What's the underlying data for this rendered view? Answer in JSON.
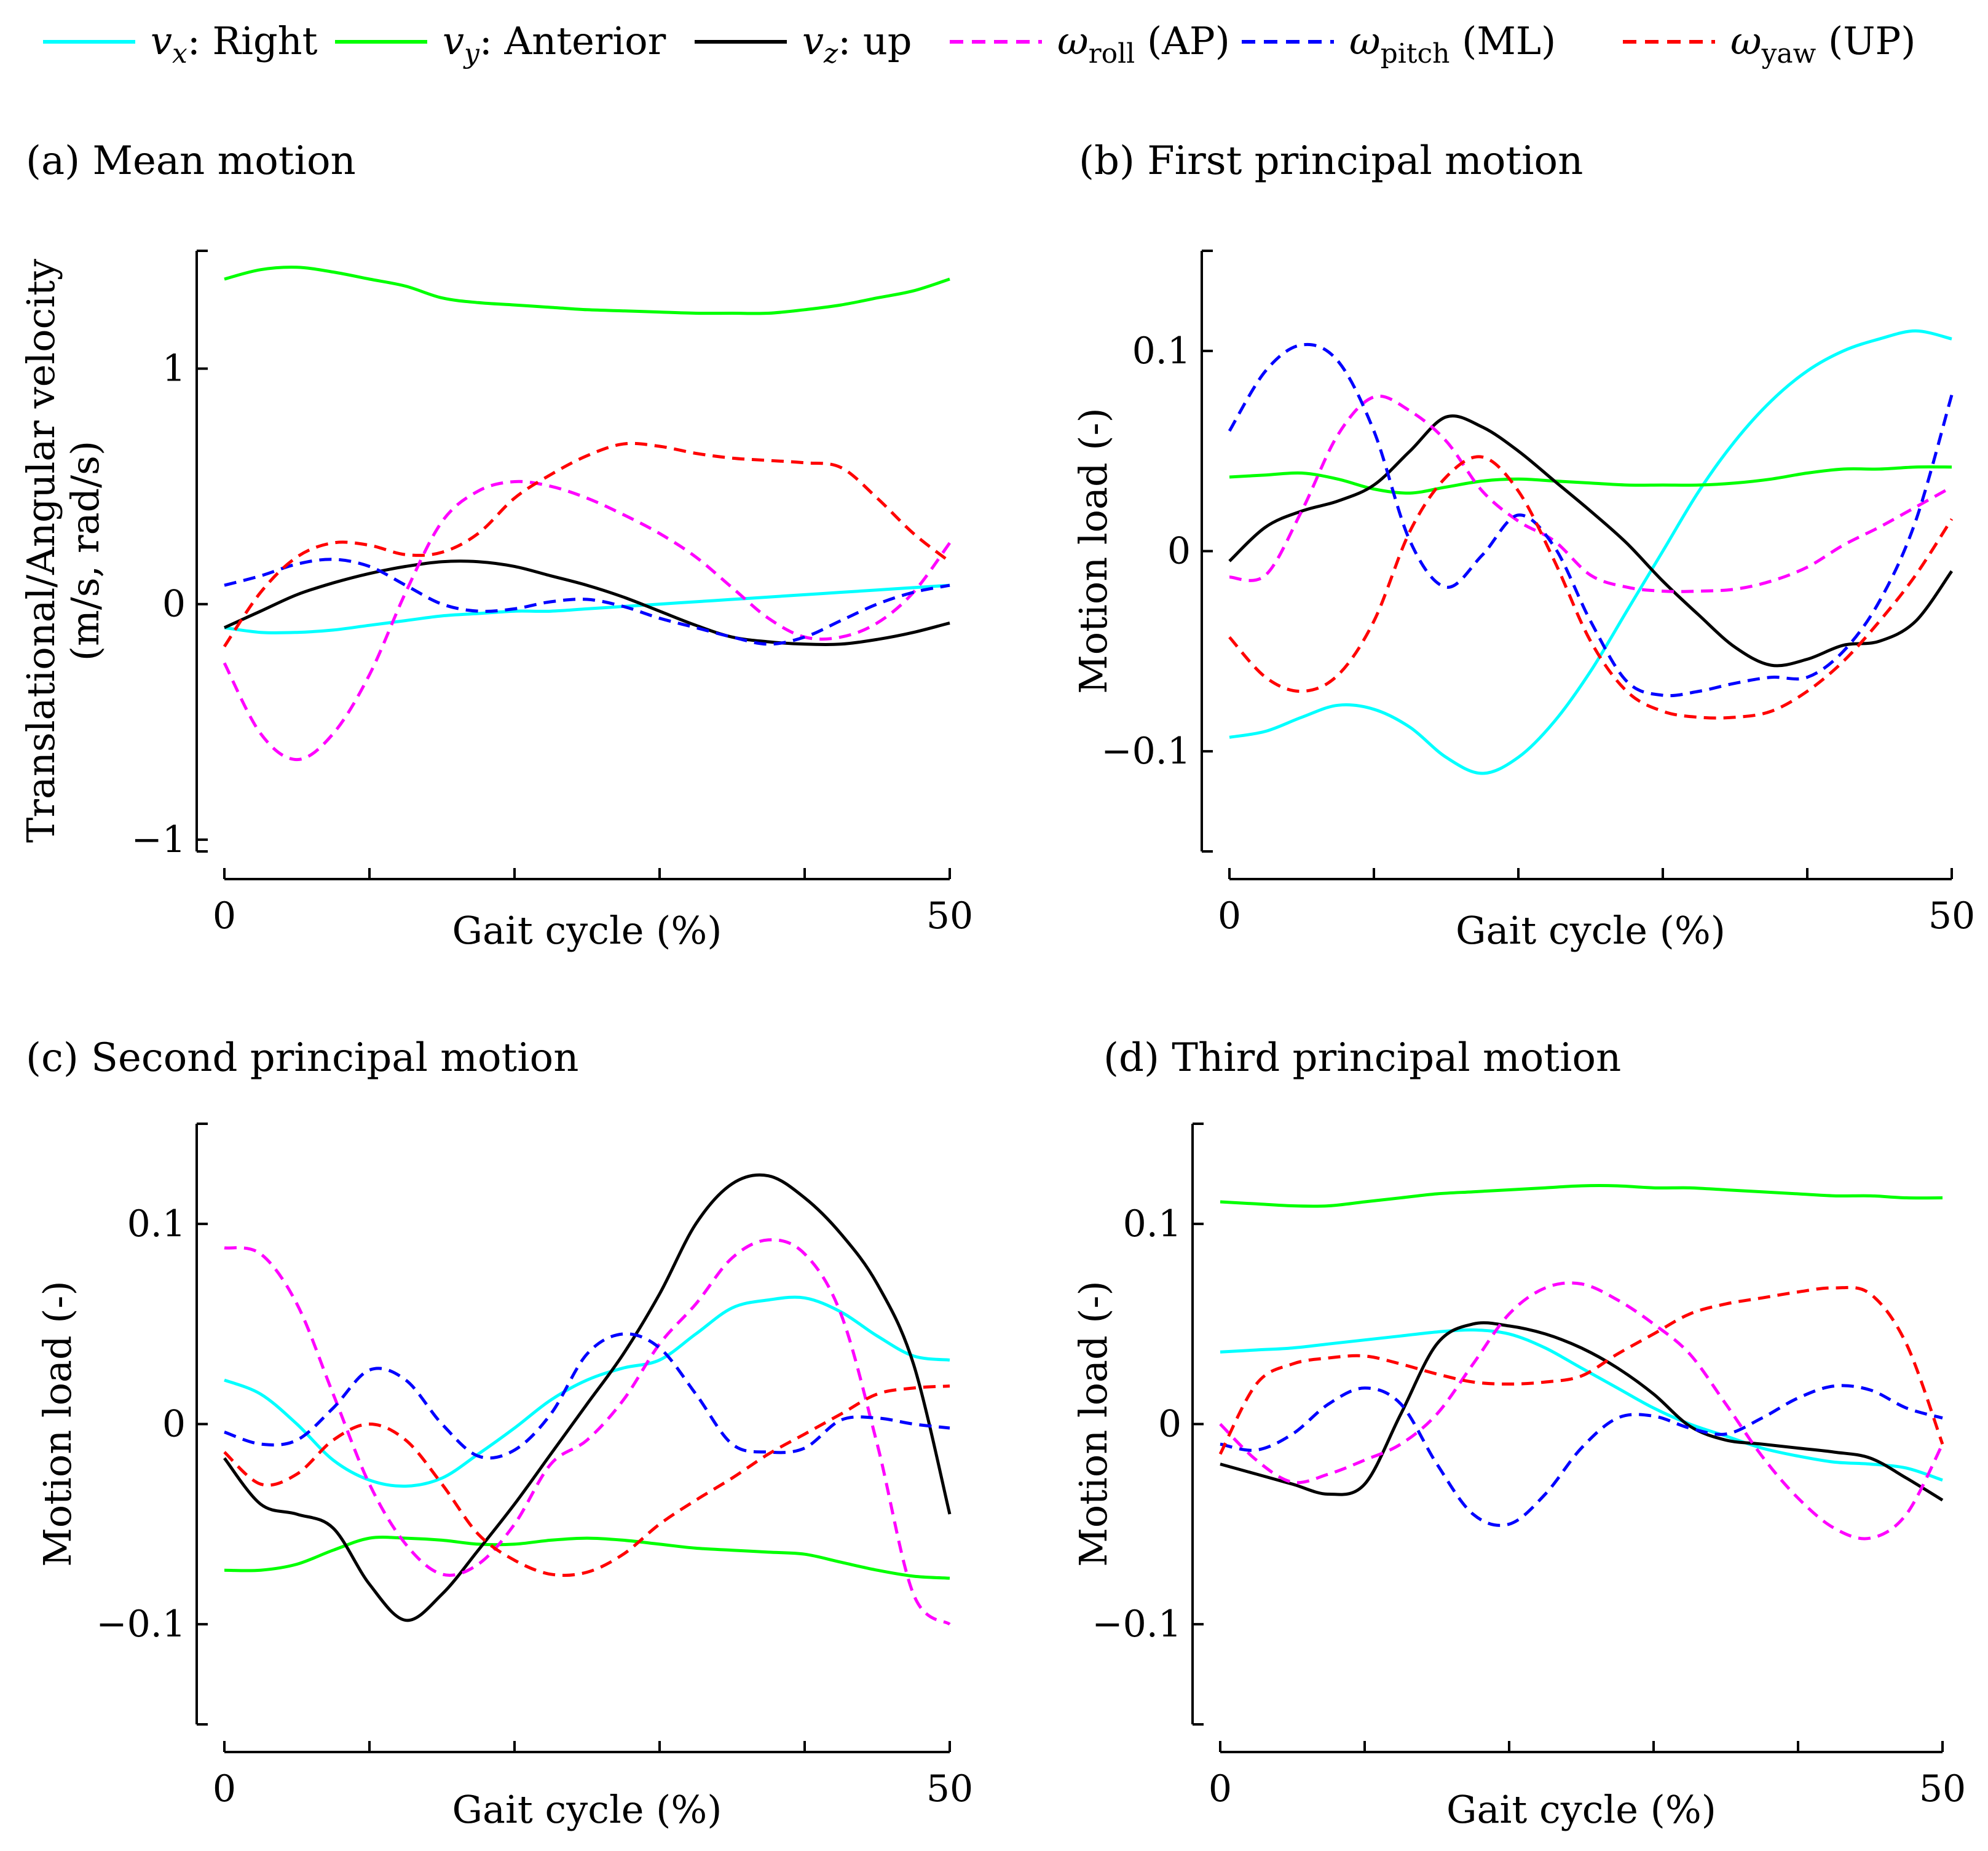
{
  "legend": [
    {
      "key": "vx",
      "symbol": "v",
      "sub": "x",
      "label": ": Right",
      "color": "#00ffff",
      "dash": false
    },
    {
      "key": "vy",
      "symbol": "v",
      "sub": "y",
      "label": ": Anterior",
      "color": "#00ff00",
      "dash": false
    },
    {
      "key": "vz",
      "symbol": "v",
      "sub": "z",
      "label": ": up",
      "color": "#000000",
      "dash": false
    },
    {
      "key": "wroll",
      "symbol": "ω",
      "sub": "roll",
      "label": " (AP)",
      "color": "#ff00ff",
      "dash": true
    },
    {
      "key": "wpitch",
      "symbol": "ω",
      "sub": "pitch",
      "label": " (ML)",
      "color": "#0000ff",
      "dash": true
    },
    {
      "key": "wyaw",
      "symbol": "ω",
      "sub": "yaw",
      "label": " (UP)",
      "color": "#ff0000",
      "dash": true
    }
  ],
  "chart_data": [
    {
      "id": "a",
      "type": "line",
      "title": "(a) Mean motion",
      "xlabel": "Gait cycle (%)",
      "ylabel": [
        "Translational/Angular velocity",
        "(m/s, rad/s)"
      ],
      "xlim": [
        0,
        50
      ],
      "ylim": [
        -1.05,
        1.5
      ],
      "xticks": [
        0,
        10,
        20,
        30,
        40,
        50
      ],
      "xtick_labels": [
        "0",
        "",
        "",
        "",
        "",
        "50"
      ],
      "yticks": [
        -1,
        0,
        1
      ],
      "ytick_labels": [
        "−1",
        "0",
        "1"
      ],
      "x": [
        0,
        2.5,
        5,
        7.5,
        10,
        12.5,
        15,
        17.5,
        20,
        22.5,
        25,
        27.5,
        30,
        32.5,
        35,
        37.5,
        40,
        42.5,
        45,
        47.5,
        50
      ],
      "series": [
        {
          "key": "vx",
          "values": [
            -0.1,
            -0.12,
            -0.12,
            -0.11,
            -0.09,
            -0.07,
            -0.05,
            -0.04,
            -0.03,
            -0.03,
            -0.02,
            -0.01,
            0.0,
            0.01,
            0.02,
            0.03,
            0.04,
            0.05,
            0.06,
            0.07,
            0.08
          ]
        },
        {
          "key": "vy",
          "values": [
            1.38,
            1.42,
            1.43,
            1.41,
            1.38,
            1.35,
            1.3,
            1.28,
            1.27,
            1.26,
            1.25,
            1.245,
            1.24,
            1.235,
            1.235,
            1.235,
            1.25,
            1.27,
            1.3,
            1.33,
            1.38
          ]
        },
        {
          "key": "vz",
          "values": [
            -0.1,
            -0.03,
            0.04,
            0.09,
            0.13,
            0.16,
            0.18,
            0.18,
            0.16,
            0.12,
            0.08,
            0.03,
            -0.03,
            -0.09,
            -0.14,
            -0.16,
            -0.17,
            -0.17,
            -0.15,
            -0.12,
            -0.08
          ]
        },
        {
          "key": "wroll",
          "values": [
            -0.25,
            -0.55,
            -0.66,
            -0.55,
            -0.3,
            0.05,
            0.35,
            0.48,
            0.52,
            0.5,
            0.45,
            0.38,
            0.3,
            0.2,
            0.07,
            -0.06,
            -0.14,
            -0.14,
            -0.08,
            0.05,
            0.26
          ]
        },
        {
          "key": "wpitch",
          "values": [
            0.08,
            0.12,
            0.17,
            0.19,
            0.16,
            0.08,
            0.0,
            -0.03,
            -0.02,
            0.01,
            0.02,
            -0.01,
            -0.06,
            -0.1,
            -0.14,
            -0.17,
            -0.14,
            -0.07,
            0.0,
            0.05,
            0.08
          ]
        },
        {
          "key": "wyaw",
          "values": [
            -0.18,
            0.05,
            0.2,
            0.26,
            0.25,
            0.21,
            0.22,
            0.3,
            0.45,
            0.55,
            0.63,
            0.68,
            0.67,
            0.64,
            0.62,
            0.61,
            0.6,
            0.58,
            0.45,
            0.3,
            0.18
          ]
        }
      ]
    },
    {
      "id": "b",
      "type": "line",
      "title": "(b) First principal motion",
      "xlabel": "Gait cycle (%)",
      "ylabel": [
        "Motion load (-)"
      ],
      "xlim": [
        0,
        50
      ],
      "ylim": [
        -0.15,
        0.15
      ],
      "xticks": [
        0,
        10,
        20,
        30,
        40,
        50
      ],
      "xtick_labels": [
        "0",
        "",
        "",
        "",
        "",
        "50"
      ],
      "yticks": [
        -0.1,
        0,
        0.1
      ],
      "ytick_labels": [
        "−0.1",
        "0",
        "0.1"
      ],
      "x": [
        0,
        2.5,
        5,
        7.5,
        10,
        12.5,
        15,
        17.5,
        20,
        22.5,
        25,
        27.5,
        30,
        32.5,
        35,
        37.5,
        40,
        42.5,
        45,
        47.5,
        50
      ],
      "series": [
        {
          "key": "vx",
          "values": [
            -0.093,
            -0.09,
            -0.083,
            -0.077,
            -0.079,
            -0.088,
            -0.103,
            -0.111,
            -0.103,
            -0.085,
            -0.06,
            -0.03,
            0.0,
            0.03,
            0.055,
            0.075,
            0.09,
            0.1,
            0.106,
            0.11,
            0.106
          ]
        },
        {
          "key": "vy",
          "values": [
            0.037,
            0.038,
            0.039,
            0.036,
            0.031,
            0.029,
            0.032,
            0.035,
            0.036,
            0.035,
            0.034,
            0.033,
            0.033,
            0.033,
            0.034,
            0.036,
            0.039,
            0.041,
            0.041,
            0.042,
            0.042
          ]
        },
        {
          "key": "vz",
          "values": [
            -0.005,
            0.012,
            0.02,
            0.025,
            0.033,
            0.05,
            0.067,
            0.062,
            0.05,
            0.035,
            0.02,
            0.004,
            -0.015,
            -0.032,
            -0.048,
            -0.057,
            -0.054,
            -0.047,
            -0.045,
            -0.035,
            -0.01
          ]
        },
        {
          "key": "wroll",
          "values": [
            -0.013,
            -0.012,
            0.02,
            0.058,
            0.077,
            0.07,
            0.055,
            0.03,
            0.015,
            0.005,
            -0.012,
            -0.018,
            -0.02,
            -0.02,
            -0.019,
            -0.015,
            -0.008,
            0.003,
            0.012,
            0.022,
            0.032
          ]
        },
        {
          "key": "wpitch",
          "values": [
            0.06,
            0.09,
            0.103,
            0.095,
            0.06,
            0.005,
            -0.018,
            -0.002,
            0.018,
            0.002,
            -0.035,
            -0.065,
            -0.072,
            -0.07,
            -0.066,
            -0.063,
            -0.063,
            -0.05,
            -0.025,
            0.015,
            0.078
          ]
        },
        {
          "key": "wyaw",
          "values": [
            -0.043,
            -0.063,
            -0.07,
            -0.062,
            -0.035,
            0.01,
            0.037,
            0.047,
            0.03,
            -0.005,
            -0.045,
            -0.07,
            -0.08,
            -0.083,
            -0.083,
            -0.08,
            -0.07,
            -0.055,
            -0.035,
            -0.012,
            0.016
          ]
        }
      ]
    },
    {
      "id": "c",
      "type": "line",
      "title": "(c) Second principal motion",
      "xlabel": "Gait cycle (%)",
      "ylabel": [
        "Motion load (-)"
      ],
      "xlim": [
        0,
        50
      ],
      "ylim": [
        -0.15,
        0.15
      ],
      "xticks": [
        0,
        10,
        20,
        30,
        40,
        50
      ],
      "xtick_labels": [
        "0",
        "",
        "",
        "",
        "",
        "50"
      ],
      "yticks": [
        -0.1,
        0,
        0.1
      ],
      "ytick_labels": [
        "−0.1",
        "0",
        "0.1"
      ],
      "x": [
        0,
        2.5,
        5,
        7.5,
        10,
        12.5,
        15,
        17.5,
        20,
        22.5,
        25,
        27.5,
        30,
        32.5,
        35,
        37.5,
        40,
        42.5,
        45,
        47.5,
        50
      ],
      "series": [
        {
          "key": "vx",
          "values": [
            0.022,
            0.015,
            0.0,
            -0.018,
            -0.028,
            -0.031,
            -0.027,
            -0.015,
            -0.002,
            0.012,
            0.022,
            0.028,
            0.032,
            0.045,
            0.058,
            0.062,
            0.063,
            0.056,
            0.044,
            0.034,
            0.032
          ]
        },
        {
          "key": "vy",
          "values": [
            -0.073,
            -0.073,
            -0.07,
            -0.063,
            -0.057,
            -0.057,
            -0.058,
            -0.06,
            -0.06,
            -0.058,
            -0.057,
            -0.058,
            -0.06,
            -0.062,
            -0.063,
            -0.064,
            -0.065,
            -0.069,
            -0.073,
            -0.076,
            -0.077
          ]
        },
        {
          "key": "vz",
          "values": [
            -0.017,
            -0.04,
            -0.045,
            -0.052,
            -0.08,
            -0.098,
            -0.085,
            -0.063,
            -0.04,
            -0.015,
            0.01,
            0.035,
            0.065,
            0.1,
            0.12,
            0.124,
            0.113,
            0.095,
            0.07,
            0.03,
            -0.045
          ]
        },
        {
          "key": "wroll",
          "values": [
            0.088,
            0.085,
            0.06,
            0.015,
            -0.03,
            -0.06,
            -0.075,
            -0.07,
            -0.05,
            -0.02,
            -0.008,
            0.012,
            0.04,
            0.06,
            0.083,
            0.092,
            0.085,
            0.055,
            -0.01,
            -0.085,
            -0.1
          ]
        },
        {
          "key": "wpitch",
          "values": [
            -0.004,
            -0.01,
            -0.008,
            0.008,
            0.027,
            0.022,
            0.0,
            -0.016,
            -0.013,
            0.005,
            0.035,
            0.045,
            0.038,
            0.015,
            -0.01,
            -0.014,
            -0.012,
            0.002,
            0.003,
            0.0,
            -0.002
          ]
        },
        {
          "key": "wyaw",
          "values": [
            -0.014,
            -0.03,
            -0.025,
            -0.008,
            0.0,
            -0.008,
            -0.03,
            -0.055,
            -0.068,
            -0.075,
            -0.074,
            -0.065,
            -0.05,
            -0.038,
            -0.027,
            -0.015,
            -0.005,
            0.005,
            0.015,
            0.018,
            0.019
          ]
        }
      ]
    },
    {
      "id": "d",
      "type": "line",
      "title": "(d) Third principal motion",
      "xlabel": "Gait cycle (%)",
      "ylabel": [
        "Motion load (-)"
      ],
      "xlim": [
        0,
        50
      ],
      "ylim": [
        -0.15,
        0.15
      ],
      "xticks": [
        0,
        10,
        20,
        30,
        40,
        50
      ],
      "xtick_labels": [
        "0",
        "",
        "",
        "",
        "",
        "50"
      ],
      "yticks": [
        -0.1,
        0,
        0.1
      ],
      "ytick_labels": [
        "−0.1",
        "0",
        "0.1"
      ],
      "x": [
        0,
        2.5,
        5,
        7.5,
        10,
        12.5,
        15,
        17.5,
        20,
        22.5,
        25,
        27.5,
        30,
        32.5,
        35,
        37.5,
        40,
        42.5,
        45,
        47.5,
        50
      ],
      "series": [
        {
          "key": "vx",
          "values": [
            0.036,
            0.037,
            0.038,
            0.04,
            0.042,
            0.044,
            0.046,
            0.047,
            0.045,
            0.038,
            0.028,
            0.018,
            0.008,
            0.0,
            -0.006,
            -0.012,
            -0.016,
            -0.019,
            -0.02,
            -0.022,
            -0.028
          ]
        },
        {
          "key": "vy",
          "values": [
            0.111,
            0.11,
            0.109,
            0.109,
            0.111,
            0.113,
            0.115,
            0.116,
            0.117,
            0.118,
            0.119,
            0.119,
            0.118,
            0.118,
            0.117,
            0.116,
            0.115,
            0.114,
            0.114,
            0.113,
            0.113
          ]
        },
        {
          "key": "vz",
          "values": [
            -0.02,
            -0.025,
            -0.03,
            -0.035,
            -0.03,
            0.005,
            0.04,
            0.05,
            0.049,
            0.045,
            0.038,
            0.028,
            0.015,
            -0.001,
            -0.008,
            -0.01,
            -0.012,
            -0.014,
            -0.017,
            -0.027,
            -0.038
          ]
        },
        {
          "key": "wroll",
          "values": [
            0.0,
            -0.018,
            -0.029,
            -0.025,
            -0.018,
            -0.01,
            0.005,
            0.03,
            0.055,
            0.068,
            0.07,
            0.062,
            0.05,
            0.035,
            0.01,
            -0.016,
            -0.037,
            -0.052,
            -0.057,
            -0.045,
            -0.01
          ]
        },
        {
          "key": "wpitch",
          "values": [
            -0.01,
            -0.013,
            -0.005,
            0.01,
            0.018,
            0.01,
            -0.02,
            -0.045,
            -0.05,
            -0.035,
            -0.012,
            0.003,
            0.004,
            -0.002,
            -0.005,
            0.003,
            0.013,
            0.019,
            0.017,
            0.008,
            0.003
          ]
        },
        {
          "key": "wyaw",
          "values": [
            -0.015,
            0.02,
            0.03,
            0.033,
            0.034,
            0.03,
            0.025,
            0.021,
            0.02,
            0.021,
            0.024,
            0.035,
            0.045,
            0.055,
            0.06,
            0.063,
            0.066,
            0.068,
            0.065,
            0.04,
            -0.01
          ]
        }
      ]
    }
  ]
}
